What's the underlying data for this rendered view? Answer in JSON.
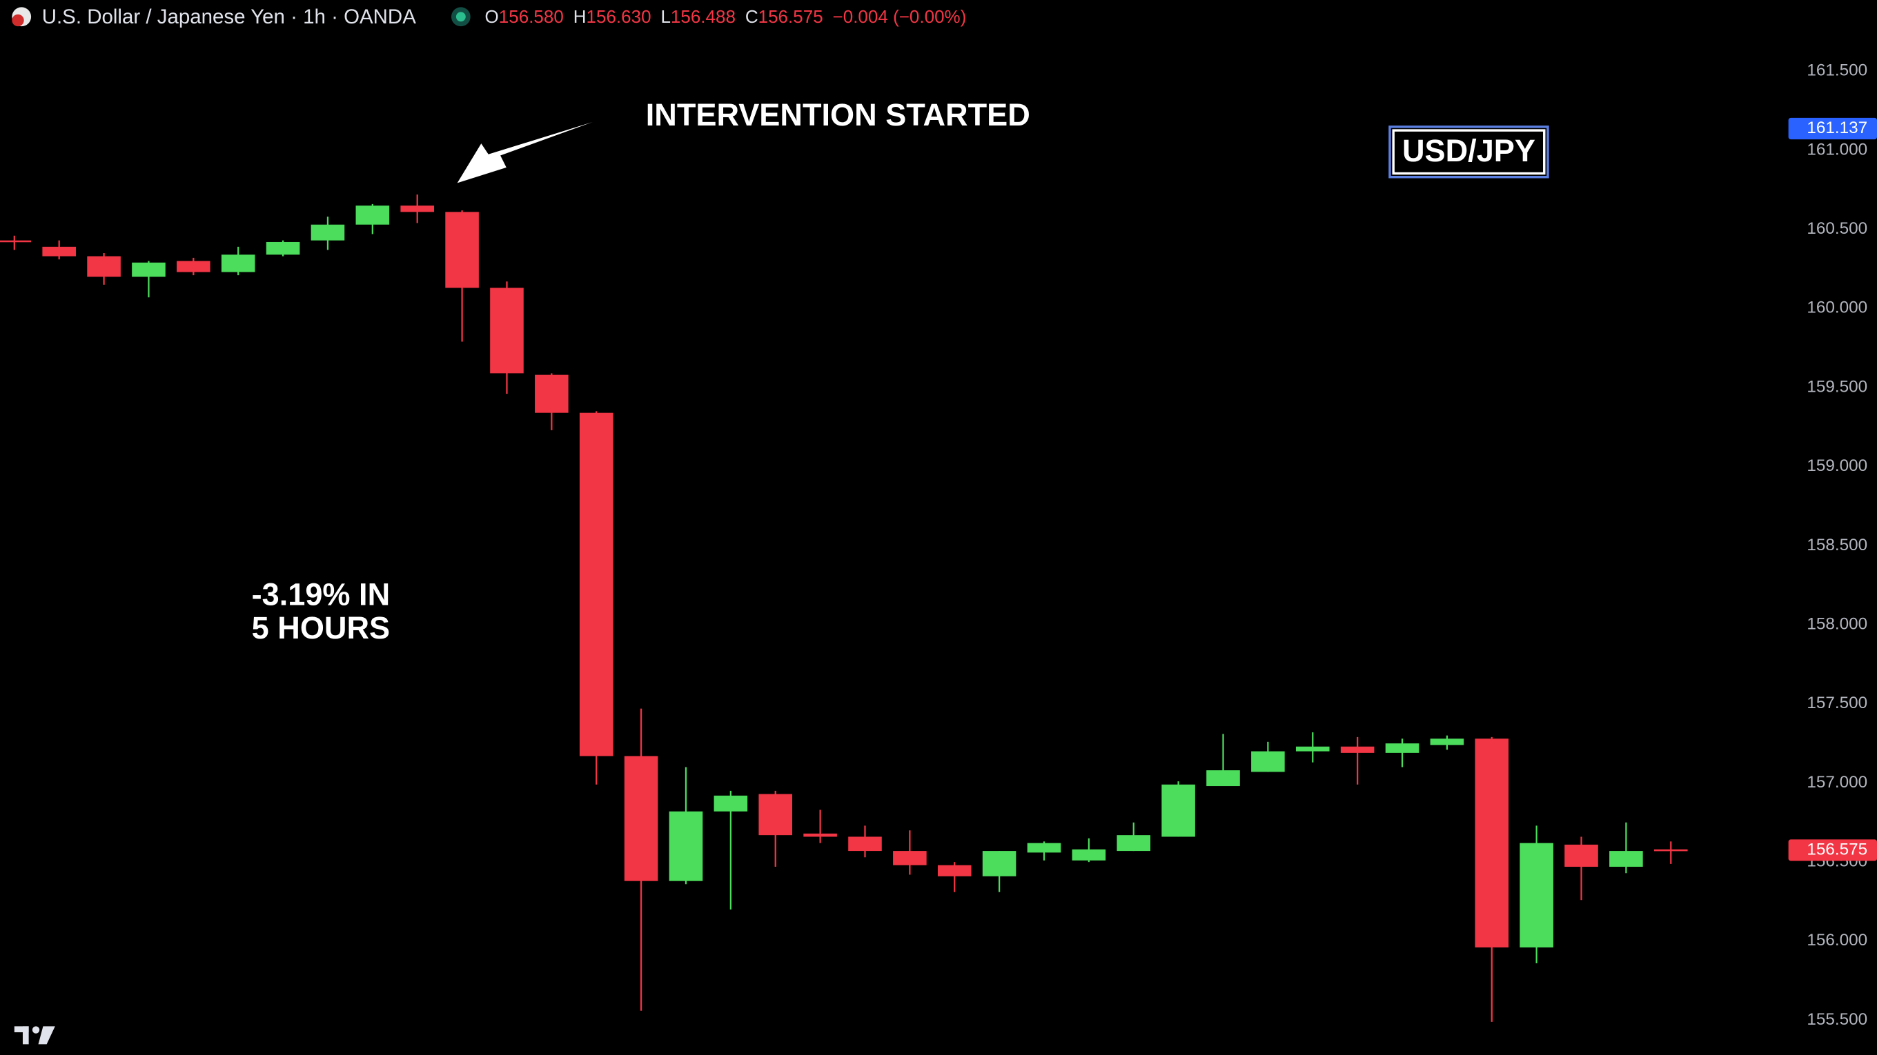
{
  "header": {
    "title": "U.S. Dollar / Japanese Yen · 1h · OANDA",
    "ohlc": [
      {
        "key": "O",
        "value": "156.580"
      },
      {
        "key": "H",
        "value": "156.630"
      },
      {
        "key": "L",
        "value": "156.488"
      },
      {
        "key": "C",
        "value": "156.575"
      }
    ],
    "change": "−0.004 (−0.00%)"
  },
  "chart_data": {
    "type": "candlestick",
    "categories": [
      null,
      null,
      null,
      null,
      null,
      null,
      null,
      null,
      null,
      null,
      null,
      null,
      null,
      null,
      null,
      null,
      null,
      null,
      null,
      null,
      null,
      null,
      null,
      null,
      null,
      null,
      null,
      null,
      null,
      null,
      null,
      null,
      null,
      null,
      null,
      null,
      null,
      null
    ],
    "open": [
      160.43,
      160.39,
      160.33,
      160.2,
      160.3,
      160.23,
      160.34,
      160.43,
      160.53,
      160.65,
      160.61,
      160.13,
      159.58,
      159.34,
      157.17,
      156.38,
      156.82,
      156.93,
      156.68,
      156.66,
      156.57,
      156.48,
      156.41,
      156.56,
      156.51,
      156.57,
      156.66,
      156.98,
      157.07,
      157.2,
      157.23,
      157.19,
      157.24,
      157.28,
      155.96,
      156.61,
      156.47,
      156.58
    ],
    "high": [
      160.46,
      160.43,
      160.35,
      160.3,
      160.32,
      160.39,
      160.43,
      160.58,
      160.66,
      160.72,
      160.62,
      160.17,
      159.59,
      159.35,
      157.47,
      157.1,
      156.95,
      156.95,
      156.83,
      156.73,
      156.7,
      156.5,
      156.57,
      156.63,
      156.65,
      156.75,
      157.01,
      157.31,
      157.26,
      157.32,
      157.29,
      157.28,
      157.3,
      157.29,
      156.73,
      156.66,
      156.75,
      156.63
    ],
    "low": [
      160.37,
      160.31,
      160.15,
      160.07,
      160.21,
      160.21,
      160.33,
      160.37,
      160.47,
      160.54,
      159.79,
      159.46,
      159.23,
      156.99,
      155.56,
      156.36,
      156.2,
      156.47,
      156.62,
      156.53,
      156.42,
      156.31,
      156.31,
      156.51,
      156.5,
      156.57,
      156.66,
      156.98,
      157.07,
      157.13,
      156.99,
      157.1,
      157.21,
      155.49,
      155.86,
      156.26,
      156.43,
      156.488
    ],
    "close": [
      160.42,
      160.33,
      160.2,
      160.29,
      160.23,
      160.34,
      160.42,
      160.53,
      160.65,
      160.61,
      160.13,
      159.59,
      159.34,
      157.17,
      156.38,
      156.82,
      156.92,
      156.67,
      156.66,
      156.57,
      156.48,
      156.41,
      156.57,
      156.62,
      156.58,
      156.67,
      156.99,
      157.08,
      157.2,
      157.23,
      157.19,
      157.25,
      157.28,
      155.96,
      156.62,
      156.47,
      156.57,
      156.575
    ],
    "up_color": "#4cdd5c",
    "down_color": "#f23645",
    "ylim": [
      155.28,
      161.95
    ],
    "yticks": [
      {
        "value": 155.5,
        "label": "155.500"
      },
      {
        "value": 156,
        "label": "156.000"
      },
      {
        "value": 156.5,
        "label": "156.500"
      },
      {
        "value": 157,
        "label": "157.000"
      },
      {
        "value": 157.5,
        "label": "157.500"
      },
      {
        "value": 158,
        "label": "158.000"
      },
      {
        "value": 158.5,
        "label": "158.500"
      },
      {
        "value": 159,
        "label": "159.000"
      },
      {
        "value": 159.5,
        "label": "159.500"
      },
      {
        "value": 160,
        "label": "160.000"
      },
      {
        "value": 160.5,
        "label": "160.500"
      },
      {
        "value": 161,
        "label": "161.000"
      },
      {
        "value": 161.5,
        "label": "161.500"
      }
    ],
    "price_tags": [
      {
        "value": 161.137,
        "label": "161.137",
        "color": "#2962ff"
      },
      {
        "value": 156.575,
        "label": "156.575",
        "color": "#f23645"
      }
    ],
    "grid": false,
    "annotations": {
      "arrow_text": "INTERVENTION STARTED",
      "drop_text": [
        "-3.19% IN",
        "5 HOURS"
      ],
      "symbol_box": "USD/JPY"
    }
  }
}
